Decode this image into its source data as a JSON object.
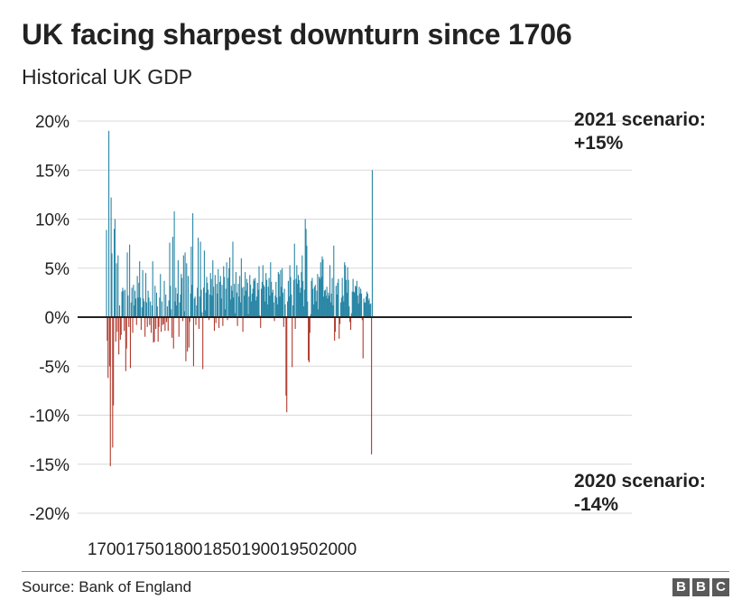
{
  "chart_data": {
    "type": "bar",
    "title": "UK facing sharpest downturn since 1706",
    "subtitle": "Historical UK GDP",
    "source": "Source: Bank of England",
    "ylim": [
      -20,
      20
    ],
    "xlim": [
      1700,
      2021
    ],
    "y_ticks": [
      "20%",
      "15%",
      "10%",
      "5%",
      "0%",
      "-5%",
      "-10%",
      "-15%",
      "-20%"
    ],
    "y_tick_values": [
      20,
      15,
      10,
      5,
      0,
      -5,
      -10,
      -15,
      -20
    ],
    "x_ticks": [
      "1700",
      "1750",
      "1800",
      "1850",
      "1900",
      "1950",
      "2000"
    ],
    "x_tick_values": [
      1700,
      1750,
      1800,
      1850,
      1900,
      1950,
      2000
    ],
    "grid": true,
    "colors": {
      "positive": "#2a87a6",
      "negative": "#b03a2e",
      "zero_line": "#222222",
      "grid": "#d9d9d9"
    },
    "annotations": [
      {
        "year": 2021,
        "lines": [
          "2021 scenario:",
          "+15%"
        ]
      },
      {
        "year": 2020,
        "lines": [
          "2020 scenario:",
          "-14%"
        ]
      }
    ],
    "start_year": 1700,
    "values": [
      8.9,
      -2.4,
      -6.2,
      19.0,
      -5.0,
      -15.2,
      12.2,
      6.5,
      -13.3,
      -9.0,
      9.0,
      10.0,
      -2.5,
      5.5,
      -1.5,
      6.3,
      -3.8,
      1.2,
      -2.3,
      -1.8,
      2.6,
      3.0,
      2.7,
      -1.4,
      2.8,
      -5.5,
      -3.2,
      6.6,
      2.2,
      -1.0,
      7.4,
      -5.2,
      1.5,
      3.0,
      -1.6,
      3.3,
      1.2,
      2.7,
      1.9,
      -0.8,
      4.2,
      2.0,
      3.5,
      5.7,
      2.0,
      -1.3,
      1.0,
      4.8,
      1.9,
      1.6,
      -2.0,
      4.5,
      1.5,
      -1.0,
      2.7,
      2.0,
      -0.8,
      1.6,
      -1.6,
      1.2,
      5.7,
      -2.6,
      -2.5,
      3.2,
      -1.2,
      2.5,
      1.1,
      -2.5,
      -1.0,
      2.0,
      4.4,
      -1.5,
      1.6,
      -0.8,
      -0.7,
      3.7,
      -1.4,
      2.3,
      -0.5,
      1.1,
      -1.4,
      1.7,
      7.6,
      3.2,
      0.8,
      -2.1,
      8.2,
      -3.2,
      10.8,
      1.6,
      3.0,
      1.2,
      2.4,
      5.8,
      -2.0,
      1.5,
      2.3,
      4.4,
      4.0,
      -0.4,
      6.3,
      0.6,
      6.6,
      -4.5,
      5.5,
      -3.5,
      4.2,
      -3.1,
      -0.5,
      2.4,
      7.2,
      3.3,
      10.6,
      -5.0,
      1.9,
      2.1,
      -0.8,
      1.2,
      3.0,
      8.1,
      -1.2,
      2.1,
      7.7,
      2.8,
      0.5,
      -5.3,
      3.0,
      6.8,
      0.7,
      2.5,
      4.1,
      3.5,
      2.8,
      -0.3,
      2.3,
      4.5,
      3.9,
      2.2,
      5.8,
      3.1,
      -1.4,
      4.3,
      -0.6,
      3.4,
      2.4,
      4.9,
      -1.1,
      3.6,
      4.2,
      1.9,
      3.3,
      -0.9,
      5.2,
      4.1,
      0.8,
      2.9,
      5.6,
      -0.3,
      4.0,
      5.0,
      6.1,
      1.8,
      3.2,
      2.7,
      7.7,
      2.0,
      3.4,
      0.4,
      4.6,
      2.5,
      -0.9,
      3.4,
      2.1,
      4.2,
      1.5,
      6.0,
      3.0,
      -1.5,
      3.1,
      2.2,
      4.6,
      2.7,
      3.9,
      3.5,
      0.3,
      2.1,
      4.3,
      3.3,
      1.6,
      2.4,
      2.9,
      3.9,
      3.7,
      4.0,
      1.7,
      2.1,
      3.5,
      2.8,
      5.2,
      0.2,
      -1.1,
      2.9,
      3.6,
      5.3,
      3.3,
      3.1,
      1.6,
      4.5,
      3.8,
      1.3,
      3.1,
      4.0,
      2.2,
      5.6,
      3.6,
      2.5,
      2.8,
      1.5,
      -0.4,
      2.2,
      3.6,
      2.0,
      1.3,
      4.6,
      4.4,
      2.1,
      4.8,
      3.1,
      5.0,
      2.5,
      -1.0,
      2.9,
      1.3,
      -8.0,
      -9.7,
      1.6,
      3.7,
      2.1,
      5.3,
      4.1,
      2.3,
      -5.1,
      1.2,
      3.8,
      7.5,
      -1.2,
      3.9,
      5.3,
      3.4,
      4.3,
      3.8,
      2.5,
      3.0,
      4.6,
      6.3,
      3.7,
      1.1,
      2.8,
      10.0,
      9.0,
      7.3,
      1.6,
      -4.4,
      -4.6,
      -1.6,
      0.3,
      3.7,
      4.0,
      2.9,
      1.3,
      3.1,
      3.3,
      1.6,
      2.7,
      4.4,
      0.8,
      4.1,
      3.9,
      5.6,
      4.1,
      6.2,
      5.9,
      2.1,
      2.7,
      2.8,
      2.2,
      3.1,
      1.9,
      2.5,
      2.2,
      5.3,
      1.5,
      2.4,
      4.0,
      1.2,
      7.3,
      -2.4,
      -1.5,
      3.2,
      2.3,
      3.5,
      3.9,
      -2.2,
      -0.7,
      1.5,
      2.0,
      4.0,
      2.2,
      1.6,
      5.6,
      5.3,
      3.8,
      2.5,
      5.1,
      3.8,
      1.1,
      -0.5,
      -1.3,
      0.4,
      2.6,
      3.9,
      2.6,
      2.5,
      3.2,
      3.1,
      3.7,
      2.2,
      1.4,
      3.1,
      2.4,
      2.9,
      2.4,
      -0.3,
      -4.2,
      1.9,
      1.5,
      1.5,
      2.1,
      2.6,
      2.4,
      1.7,
      1.9,
      1.3,
      1.4,
      -14.0,
      15.0
    ]
  }
}
